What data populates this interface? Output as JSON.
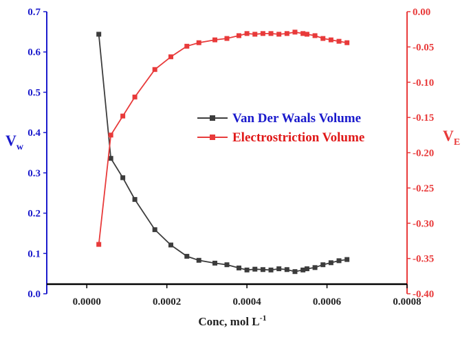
{
  "chart_data": {
    "type": "line",
    "xlabel": {
      "main": "Conc, mol L",
      "sup": "-1"
    },
    "ylabel_left": {
      "main": "V",
      "sub": "w"
    },
    "ylabel_right": {
      "main": "V",
      "sub": "E"
    },
    "xlim": [
      -0.0001,
      0.0008
    ],
    "ylim_left": [
      0,
      0.7
    ],
    "ylim_right": [
      -0.4,
      0.0
    ],
    "x_ticks": [
      "0.0000",
      "0.0002",
      "0.0004",
      "0.0006",
      "0.0008"
    ],
    "y_left_ticks": [
      "0.0",
      "0.1",
      "0.2",
      "0.3",
      "0.4",
      "0.5",
      "0.6",
      "0.7"
    ],
    "y_right_ticks": [
      "0.00",
      "-0.05",
      "-0.10",
      "-0.15",
      "-0.20",
      "-0.25",
      "-0.30",
      "-0.35",
      "-0.40"
    ],
    "legend": [
      "Van Der Waals Volume",
      "Electrostriction Volume"
    ],
    "colors": {
      "vdw": "#3c3c3c",
      "elec": "#e83a3a",
      "left_axis": "#1a1acc",
      "right_axis": "#e83a3a",
      "bottom_axis": "#000000",
      "legend_text_vdw": "#1a1acc",
      "legend_text_elec": "#e01818"
    },
    "series": [
      {
        "name": "Van Der Waals Volume",
        "axis": "left",
        "x": [
          3e-05,
          6e-05,
          9e-05,
          0.00012,
          0.00017,
          0.00021,
          0.00025,
          0.00028,
          0.00032,
          0.00035,
          0.00038,
          0.0004,
          0.00042,
          0.00044,
          0.00046,
          0.00048,
          0.0005,
          0.00052,
          0.00054,
          0.00055,
          0.00057,
          0.00059,
          0.00061,
          0.00063,
          0.00065
        ],
        "values": [
          0.644,
          0.336,
          0.288,
          0.234,
          0.159,
          0.121,
          0.093,
          0.083,
          0.076,
          0.072,
          0.064,
          0.059,
          0.061,
          0.06,
          0.059,
          0.062,
          0.06,
          0.055,
          0.059,
          0.062,
          0.065,
          0.072,
          0.077,
          0.082,
          0.085
        ]
      },
      {
        "name": "Electrostriction Volume",
        "axis": "right",
        "x": [
          3e-05,
          6e-05,
          9e-05,
          0.00012,
          0.00017,
          0.00021,
          0.00025,
          0.00028,
          0.00032,
          0.00035,
          0.00038,
          0.0004,
          0.00042,
          0.00044,
          0.00046,
          0.00048,
          0.0005,
          0.00052,
          0.00054,
          0.00055,
          0.00057,
          0.00059,
          0.00061,
          0.00063,
          0.00065
        ],
        "values": [
          -0.33,
          -0.175,
          -0.148,
          -0.121,
          -0.082,
          -0.064,
          -0.049,
          -0.044,
          -0.04,
          -0.038,
          -0.034,
          -0.031,
          -0.032,
          -0.031,
          -0.031,
          -0.032,
          -0.031,
          -0.029,
          -0.031,
          -0.032,
          -0.034,
          -0.038,
          -0.04,
          -0.042,
          -0.044
        ]
      }
    ]
  }
}
